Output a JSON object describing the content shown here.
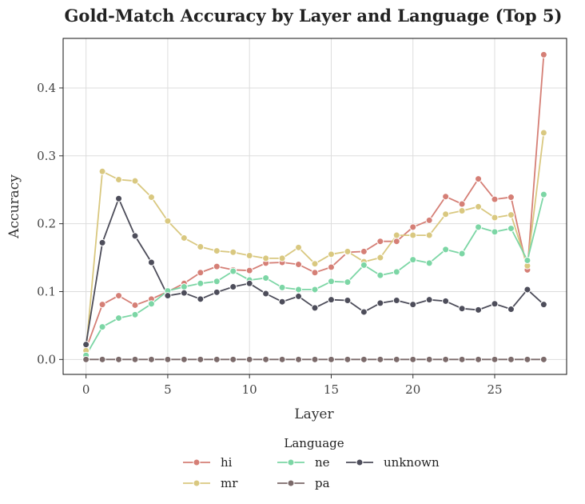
{
  "chart_data": {
    "type": "line",
    "title": "Gold-Match Accuracy by Layer and Language (Top 5)",
    "xlabel": "Layer",
    "ylabel": "Accuracy",
    "xlim": [
      -1.4,
      29.4
    ],
    "ylim": [
      -0.022,
      0.473
    ],
    "xticks": [
      0,
      5,
      10,
      15,
      20,
      25
    ],
    "yticks": [
      0.0,
      0.1,
      0.2,
      0.3,
      0.4
    ],
    "xtick_labels": [
      "0",
      "5",
      "10",
      "15",
      "20",
      "25"
    ],
    "ytick_labels": [
      "0.0",
      "0.1",
      "0.2",
      "0.3",
      "0.4"
    ],
    "grid": true,
    "legend": {
      "title": "Language",
      "placement": "bottom-center"
    },
    "x": [
      0,
      1,
      2,
      3,
      4,
      5,
      6,
      7,
      8,
      9,
      10,
      11,
      12,
      13,
      14,
      15,
      16,
      17,
      18,
      19,
      20,
      21,
      22,
      23,
      24,
      25,
      26,
      27,
      28
    ],
    "series": [
      {
        "name": "hi",
        "color": "#d57f76",
        "values": [
          0.015,
          0.081,
          0.094,
          0.08,
          0.089,
          0.1,
          0.112,
          0.128,
          0.137,
          0.132,
          0.131,
          0.142,
          0.143,
          0.14,
          0.128,
          0.136,
          0.158,
          0.159,
          0.174,
          0.174,
          0.195,
          0.205,
          0.24,
          0.229,
          0.266,
          0.236,
          0.239,
          0.132,
          0.449
        ]
      },
      {
        "name": "mr",
        "color": "#d9c880",
        "values": [
          0.013,
          0.277,
          0.265,
          0.263,
          0.239,
          0.204,
          0.179,
          0.166,
          0.16,
          0.158,
          0.153,
          0.149,
          0.149,
          0.165,
          0.141,
          0.155,
          0.159,
          0.144,
          0.15,
          0.183,
          0.183,
          0.183,
          0.214,
          0.219,
          0.225,
          0.209,
          0.213,
          0.138,
          0.334
        ]
      },
      {
        "name": "ne",
        "color": "#7cd6a5",
        "values": [
          0.006,
          0.048,
          0.061,
          0.066,
          0.082,
          0.101,
          0.107,
          0.112,
          0.115,
          0.13,
          0.117,
          0.12,
          0.106,
          0.103,
          0.103,
          0.115,
          0.114,
          0.139,
          0.124,
          0.129,
          0.147,
          0.142,
          0.162,
          0.156,
          0.195,
          0.188,
          0.193,
          0.146,
          0.243
        ]
      },
      {
        "name": "pa",
        "color": "#7b6a6a",
        "values": [
          0,
          0,
          0,
          0,
          0,
          0,
          0,
          0,
          0,
          0,
          0,
          0,
          0,
          0,
          0,
          0,
          0,
          0,
          0,
          0,
          0,
          0,
          0,
          0,
          0,
          0,
          0,
          0,
          0
        ]
      },
      {
        "name": "unknown",
        "color": "#4d4d5a",
        "values": [
          0.022,
          0.172,
          0.237,
          0.182,
          0.143,
          0.094,
          0.098,
          0.089,
          0.099,
          0.107,
          0.112,
          0.097,
          0.085,
          0.093,
          0.076,
          0.088,
          0.087,
          0.07,
          0.083,
          0.087,
          0.081,
          0.088,
          0.086,
          0.075,
          0.073,
          0.082,
          0.074,
          0.103,
          0.081
        ]
      }
    ]
  }
}
